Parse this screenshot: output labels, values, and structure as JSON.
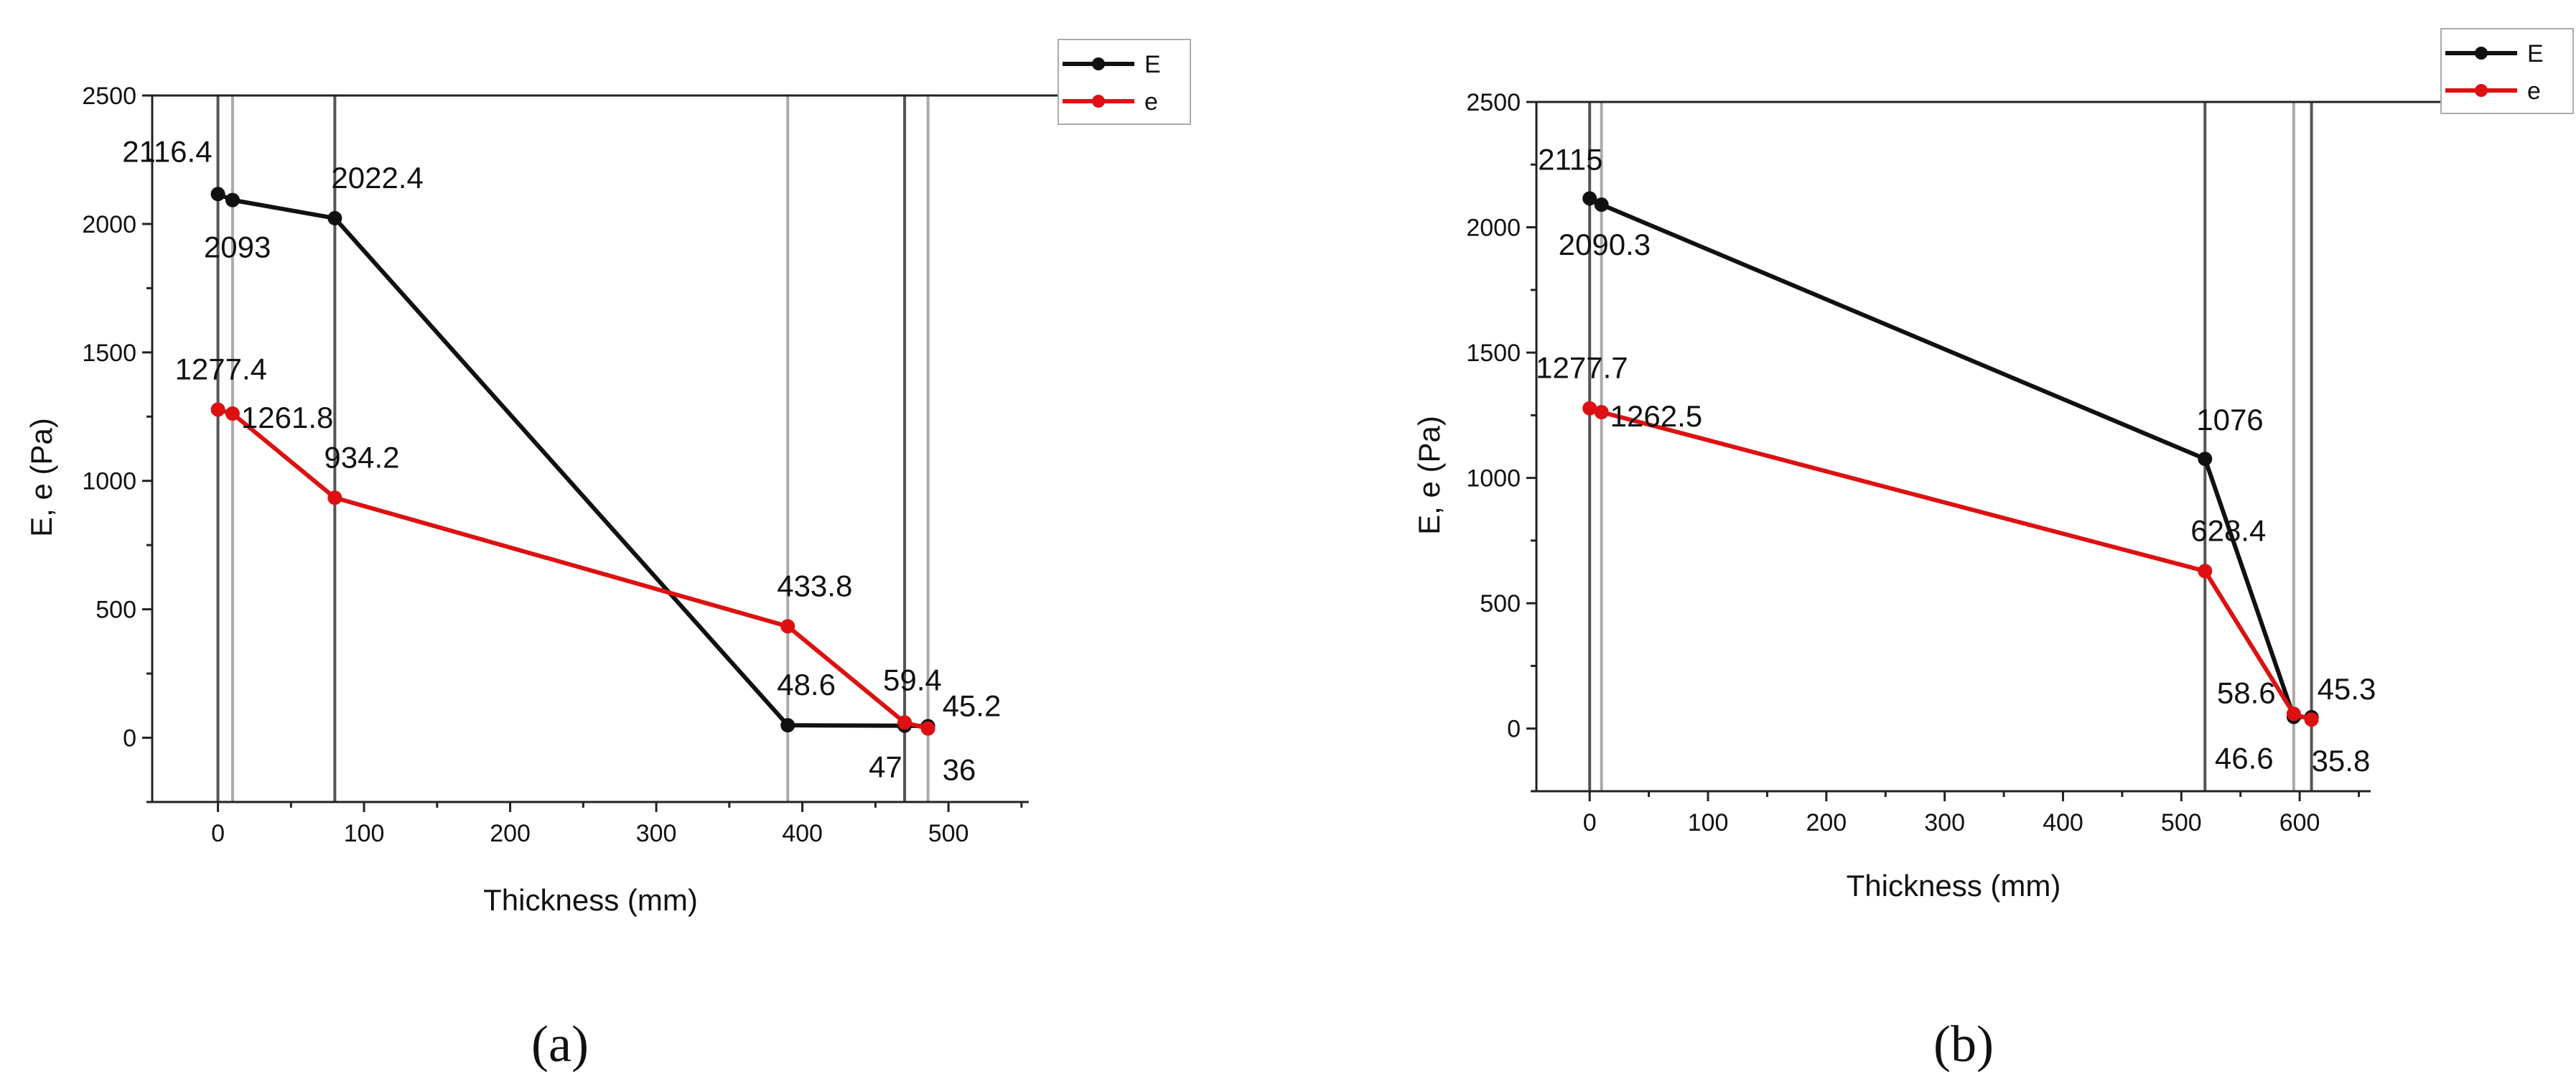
{
  "chart_data": [
    {
      "type": "line",
      "panel_label": "(a)",
      "xlabel": "Thickness (mm)",
      "ylabel": "E, e (Pa)",
      "xlim": [
        -45,
        555
      ],
      "ylim": [
        -250,
        2500
      ],
      "xticks": [
        0,
        100,
        200,
        300,
        400,
        500
      ],
      "yticks": [
        0,
        500,
        1000,
        1500,
        2000,
        2500
      ],
      "vlines": [
        0,
        10,
        80,
        390,
        470,
        486
      ],
      "legend": "top-right",
      "series": [
        {
          "name": "E",
          "color": "#111111",
          "points": [
            {
              "x": 0,
              "y": 2116.4,
              "label": "2116.4"
            },
            {
              "x": 10,
              "y": 2093,
              "label": "2093"
            },
            {
              "x": 80,
              "y": 2022.4,
              "label": "2022.4"
            },
            {
              "x": 390,
              "y": 48.6,
              "label": "48.6"
            },
            {
              "x": 470,
              "y": 47,
              "label": "47"
            },
            {
              "x": 486,
              "y": 45.2,
              "label": "45.2"
            }
          ]
        },
        {
          "name": "e",
          "color": "#dd1111",
          "points": [
            {
              "x": 0,
              "y": 1277.4,
              "label": "1277.4"
            },
            {
              "x": 10,
              "y": 1261.8,
              "label": "1261.8"
            },
            {
              "x": 80,
              "y": 934.2,
              "label": "934.2"
            },
            {
              "x": 390,
              "y": 433.8,
              "label": "433.8"
            },
            {
              "x": 470,
              "y": 59.4,
              "label": "59.4"
            },
            {
              "x": 486,
              "y": 36,
              "label": "36"
            }
          ]
        }
      ]
    },
    {
      "type": "line",
      "panel_label": "(b)",
      "xlabel": "Thickness (mm)",
      "ylabel": "E, e (Pa)",
      "xlim": [
        -45,
        660
      ],
      "ylim": [
        -250,
        2500
      ],
      "xticks": [
        0,
        100,
        200,
        300,
        400,
        500,
        600
      ],
      "yticks": [
        0,
        500,
        1000,
        1500,
        2000,
        2500
      ],
      "vlines": [
        0,
        10,
        520,
        595,
        610
      ],
      "legend": "top-right",
      "series": [
        {
          "name": "E",
          "color": "#111111",
          "points": [
            {
              "x": 0,
              "y": 2115,
              "label": "2115"
            },
            {
              "x": 10,
              "y": 2090.3,
              "label": "2090.3"
            },
            {
              "x": 520,
              "y": 1076,
              "label": "1076"
            },
            {
              "x": 595,
              "y": 46.6,
              "label": "46.6"
            },
            {
              "x": 610,
              "y": 45.3,
              "label": "45.3"
            }
          ]
        },
        {
          "name": "e",
          "color": "#dd1111",
          "points": [
            {
              "x": 0,
              "y": 1277.7,
              "label": "1277.7"
            },
            {
              "x": 10,
              "y": 1262.5,
              "label": "1262.5"
            },
            {
              "x": 520,
              "y": 628.4,
              "label": "628.4"
            },
            {
              "x": 595,
              "y": 58.6,
              "label": "58.6"
            },
            {
              "x": 610,
              "y": 35.8,
              "label": "35.8"
            }
          ]
        }
      ]
    }
  ]
}
